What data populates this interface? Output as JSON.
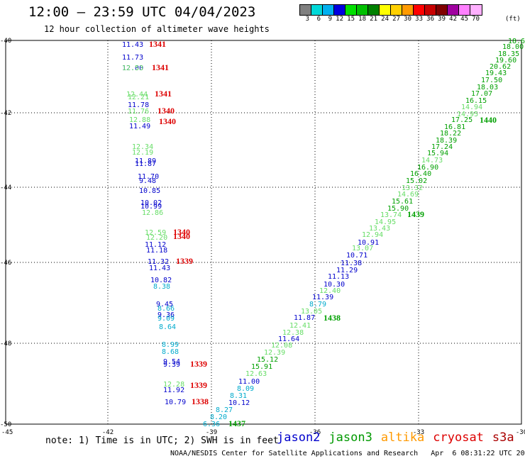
{
  "header": {
    "title": "12:00 — 23:59 UTC 04/04/2023",
    "subtitle": "12 hour collection of altimeter wave heights"
  },
  "color_legend": {
    "values": [
      "3",
      "6",
      "9",
      "12",
      "15",
      "18",
      "21",
      "24",
      "27",
      "30",
      "33",
      "36",
      "39",
      "42",
      "45",
      "70"
    ],
    "colors": [
      "#808080",
      "#00d8d8",
      "#00b0f0",
      "#0000e0",
      "#00e000",
      "#00c000",
      "#008000",
      "#ffff00",
      "#ffd000",
      "#ff9a00",
      "#ff0000",
      "#c80000",
      "#800000",
      "#a000a0",
      "#ff80ff",
      "#ffb0ff"
    ],
    "unit": "(ft)"
  },
  "map": {
    "lon_ticks": [
      "-42",
      "-39",
      "-36",
      "-33",
      "-30"
    ],
    "lat_ticks": [
      "-40",
      "-42",
      "-44",
      "-46",
      "-48",
      "-50"
    ],
    "corner_label": "-45",
    "track_colors": {
      "jason2": "#0000cc",
      "jason3": "#00a000",
      "jason3_light": "#66dd66",
      "jason3_pale": "#99ee99",
      "altika": "#00aacc",
      "cryosat": "#dd0000",
      "s3a": "#aa0000"
    },
    "track_labels": [
      {
        "t": "11.43",
        "c": "jason2"
      },
      {
        "t": "1341",
        "c": "cryosat"
      },
      {
        "t": "11.73",
        "c": "jason2"
      },
      {
        "t": "12.00",
        "c": "jason2"
      },
      {
        "t": "12.53",
        "c": "jason3_light"
      },
      {
        "t": "1341",
        "c": "cryosat"
      },
      {
        "t": "12.44",
        "c": "jason3_light"
      },
      {
        "t": "1341",
        "c": "cryosat"
      },
      {
        "t": "12.21",
        "c": "jason3_light"
      },
      {
        "t": "11.78",
        "c": "jason2"
      },
      {
        "t": "11.76",
        "c": "jason3_light"
      },
      {
        "t": "1340",
        "c": "cryosat"
      },
      {
        "t": "12.88",
        "c": "jason3_light"
      },
      {
        "t": "11.49",
        "c": "jason2"
      },
      {
        "t": "1340",
        "c": "cryosat"
      },
      {
        "t": "12.34",
        "c": "jason3_light"
      },
      {
        "t": "12.19",
        "c": "jason3_light"
      },
      {
        "t": "11.89",
        "c": "jason2"
      },
      {
        "t": "11.87",
        "c": "jason2"
      },
      {
        "t": "11.70",
        "c": "jason2"
      },
      {
        "t": "9.48",
        "c": "jason2"
      },
      {
        "t": "10.85",
        "c": "jason2"
      },
      {
        "t": "10.02",
        "c": "jason2"
      },
      {
        "t": "10.99",
        "c": "jason2"
      },
      {
        "t": "12.86",
        "c": "jason3_light"
      },
      {
        "t": "12.59",
        "c": "jason3_light"
      },
      {
        "t": "1340",
        "c": "cryosat"
      },
      {
        "t": "12.20",
        "c": "jason3_light"
      },
      {
        "t": "1340",
        "c": "cryosat"
      },
      {
        "t": "11.12",
        "c": "jason2"
      },
      {
        "t": "11.18",
        "c": "jason2"
      },
      {
        "t": "11.32",
        "c": "jason2"
      },
      {
        "t": "1339",
        "c": "cryosat"
      },
      {
        "t": "11.43",
        "c": "jason2"
      },
      {
        "t": "10.82",
        "c": "jason2"
      },
      {
        "t": "8.38",
        "c": "altika"
      },
      {
        "t": "9.45",
        "c": "jason2"
      },
      {
        "t": "8.66",
        "c": "altika"
      },
      {
        "t": "9.36",
        "c": "jason2"
      },
      {
        "t": "9.09",
        "c": "altika"
      },
      {
        "t": "8.64",
        "c": "altika"
      },
      {
        "t": "8.99",
        "c": "altika"
      },
      {
        "t": "8.68",
        "c": "altika"
      },
      {
        "t": "9.54",
        "c": "jason2"
      },
      {
        "t": "9.39",
        "c": "jason2"
      },
      {
        "t": "1339",
        "c": "cryosat"
      },
      {
        "t": "12.28",
        "c": "jason3_light"
      },
      {
        "t": "11.92",
        "c": "jason2"
      },
      {
        "t": "1339",
        "c": "cryosat"
      },
      {
        "t": "10.79",
        "c": "jason2"
      },
      {
        "t": "1338",
        "c": "cryosat"
      },
      {
        "t": "6.36",
        "c": "altika"
      },
      {
        "t": "8.20",
        "c": "altika"
      },
      {
        "t": "8.27",
        "c": "altika"
      },
      {
        "t": "10.12",
        "c": "jason2"
      },
      {
        "t": "8.31",
        "c": "altika"
      },
      {
        "t": "8.09",
        "c": "altika"
      },
      {
        "t": "11.00",
        "c": "jason2"
      },
      {
        "t": "1437",
        "c": "jason3"
      },
      {
        "t": "12.63",
        "c": "jason3_light"
      },
      {
        "t": "15.91",
        "c": "jason3"
      },
      {
        "t": "15.12",
        "c": "jason3"
      },
      {
        "t": "12.39",
        "c": "jason3_light"
      },
      {
        "t": "12.08",
        "c": "jason3_light"
      },
      {
        "t": "11.64",
        "c": "jason2"
      },
      {
        "t": "12.38",
        "c": "jason3_light"
      },
      {
        "t": "12.41",
        "c": "jason3_light"
      },
      {
        "t": "11.87",
        "c": "jason2"
      },
      {
        "t": "1438",
        "c": "jason3"
      },
      {
        "t": "13.05",
        "c": "jason3_light"
      },
      {
        "t": "8.79",
        "c": "altika"
      },
      {
        "t": "11.39",
        "c": "jason2"
      },
      {
        "t": "12.40",
        "c": "jason3_light"
      },
      {
        "t": "10.30",
        "c": "jason2"
      },
      {
        "t": "11.13",
        "c": "jason2"
      },
      {
        "t": "11.29",
        "c": "jason2"
      },
      {
        "t": "11.38",
        "c": "jason2"
      },
      {
        "t": "10.71",
        "c": "jason2"
      },
      {
        "t": "13.07",
        "c": "jason3_light"
      },
      {
        "t": "10.91",
        "c": "jason2"
      },
      {
        "t": "12.94",
        "c": "jason3_light"
      },
      {
        "t": "13.43",
        "c": "jason3_light"
      },
      {
        "t": "14.95",
        "c": "jason3_light"
      },
      {
        "t": "13.74",
        "c": "jason3_light"
      },
      {
        "t": "1439",
        "c": "jason3"
      },
      {
        "t": "15.90",
        "c": "jason3"
      },
      {
        "t": "15.61",
        "c": "jason3"
      },
      {
        "t": "14.69",
        "c": "jason3_light"
      },
      {
        "t": "13.32",
        "c": "jason3_light"
      },
      {
        "t": "15.02",
        "c": "jason3"
      },
      {
        "t": "16.40",
        "c": "jason3"
      },
      {
        "t": "16.90",
        "c": "jason3"
      },
      {
        "t": "14.73",
        "c": "jason3_light"
      },
      {
        "t": "15.94",
        "c": "jason3"
      },
      {
        "t": "17.24",
        "c": "jason3"
      },
      {
        "t": "18.39",
        "c": "jason3"
      },
      {
        "t": "18.22",
        "c": "jason3"
      },
      {
        "t": "16.81",
        "c": "jason3"
      },
      {
        "t": "17.25",
        "c": "jason3"
      },
      {
        "t": "1440",
        "c": "jason3"
      },
      {
        "t": "14.95",
        "c": "jason3_light"
      },
      {
        "t": "14.94",
        "c": "jason3_light"
      },
      {
        "t": "16.15",
        "c": "jason3"
      },
      {
        "t": "17.07",
        "c": "jason3"
      },
      {
        "t": "18.03",
        "c": "jason3"
      },
      {
        "t": "17.50",
        "c": "jason3"
      },
      {
        "t": "19.43",
        "c": "jason3"
      },
      {
        "t": "20.62",
        "c": "jason3"
      },
      {
        "t": "19.60",
        "c": "jason3"
      },
      {
        "t": "18.35",
        "c": "jason3"
      },
      {
        "t": "18.00",
        "c": "jason3"
      },
      {
        "t": "18.6",
        "c": "jason3"
      }
    ]
  },
  "footer": {
    "note": "note: 1) Time is in UTC; 2) SWH is in feet",
    "satellites": [
      {
        "name": "jason2",
        "color": "#0000cc"
      },
      {
        "name": "jason3",
        "color": "#009900"
      },
      {
        "name": "altika",
        "color": "#ff9900"
      },
      {
        "name": "cryosat",
        "color": "#dd0000"
      },
      {
        "name": "s3a",
        "color": "#aa0000"
      }
    ],
    "credits": "NOAA/NESDIS Center for Satellite Applications and Research   Apr  6 08:31:22 UTC 2023"
  }
}
